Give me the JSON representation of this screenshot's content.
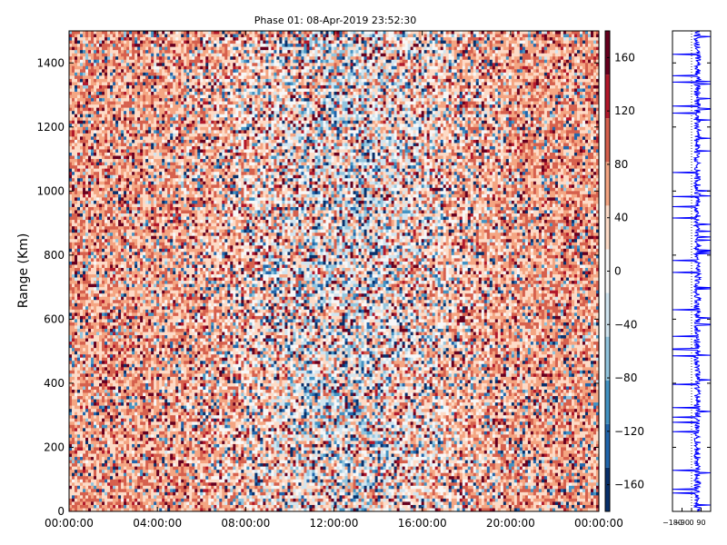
{
  "chart_data": [
    {
      "type": "heatmap",
      "title": "Phase 01: 08-Apr-2019 23:52:30",
      "xlabel": "",
      "ylabel": "Range (Km)",
      "x_ticks": [
        "00:00:00",
        "04:00:00",
        "08:00:00",
        "12:00:00",
        "16:00:00",
        "20:00:00",
        "00:00:00"
      ],
      "y_ticks": [
        0,
        200,
        400,
        600,
        800,
        1000,
        1200,
        1400
      ],
      "ylim": [
        0,
        1500
      ],
      "x_hours_range": [
        0,
        24
      ],
      "colorbar": {
        "vmin": -180,
        "vmax": 180,
        "ticks": [
          -160,
          -120,
          -80,
          -40,
          0,
          40,
          80,
          120,
          160
        ],
        "colormap": "RdBu_r (diverging, discrete)",
        "colors": [
          "#08306b",
          "#2166ac",
          "#4393c3",
          "#92c5de",
          "#d1e5f0",
          "#f7f7f7",
          "#fddbc7",
          "#f4a582",
          "#d6604d",
          "#b2182b",
          "#67001f"
        ]
      },
      "grid": false,
      "description_values": {
        "phase_distribution": "mostly noisy phase values; pinkish (+40 to +100) dominant near 00-06h and 18-24h, more mixed and lighter in 08-18h"
      }
    },
    {
      "type": "line",
      "orientation": "vertical",
      "x_ticks": [
        "−180",
        "−90",
        "0",
        "90"
      ],
      "xlim": [
        -180,
        180
      ],
      "ylim": [
        0,
        1500
      ],
      "series": [
        {
          "color": "#0000ff"
        }
      ]
    }
  ]
}
